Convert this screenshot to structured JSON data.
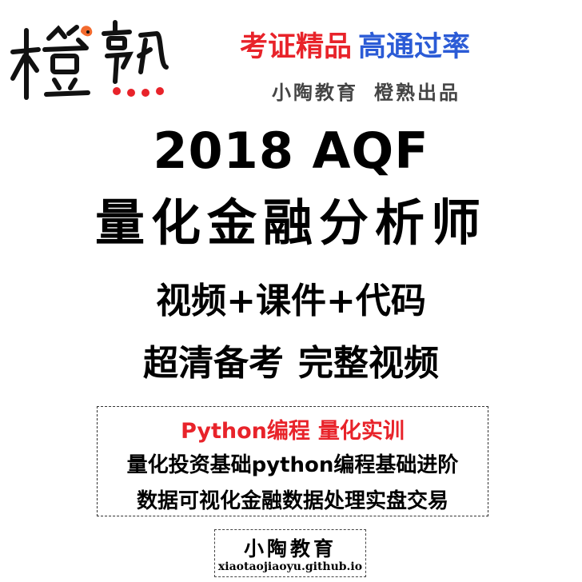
{
  "logo": {
    "text": "橙熟",
    "colors": {
      "ink": "#111111",
      "accent_orange": "#f26a2e",
      "accent_red": "#e8232a"
    }
  },
  "header": {
    "tagline_red": "考证精品",
    "tagline_blue": "高通过率",
    "publisher_a": "小陶教育",
    "publisher_b": "橙熟出品"
  },
  "title": {
    "year_line": "2018 AQF",
    "main": "量化金融分析师"
  },
  "features": {
    "line1": "视频+课件+代码",
    "line2_a": "超清备考",
    "line2_b": "完整视频"
  },
  "box": {
    "title_a": "Python编程",
    "title_b": "量化实训",
    "line1": "量化投资基础python编程基础进阶",
    "line2": "数据可视化金融数据处理实盘交易"
  },
  "footer": {
    "name": "小陶教育",
    "url": "xiaotaojiaoyu.github.io"
  },
  "colors": {
    "red": "#e8232a",
    "blue": "#2b5bd6",
    "gray": "#444444"
  }
}
